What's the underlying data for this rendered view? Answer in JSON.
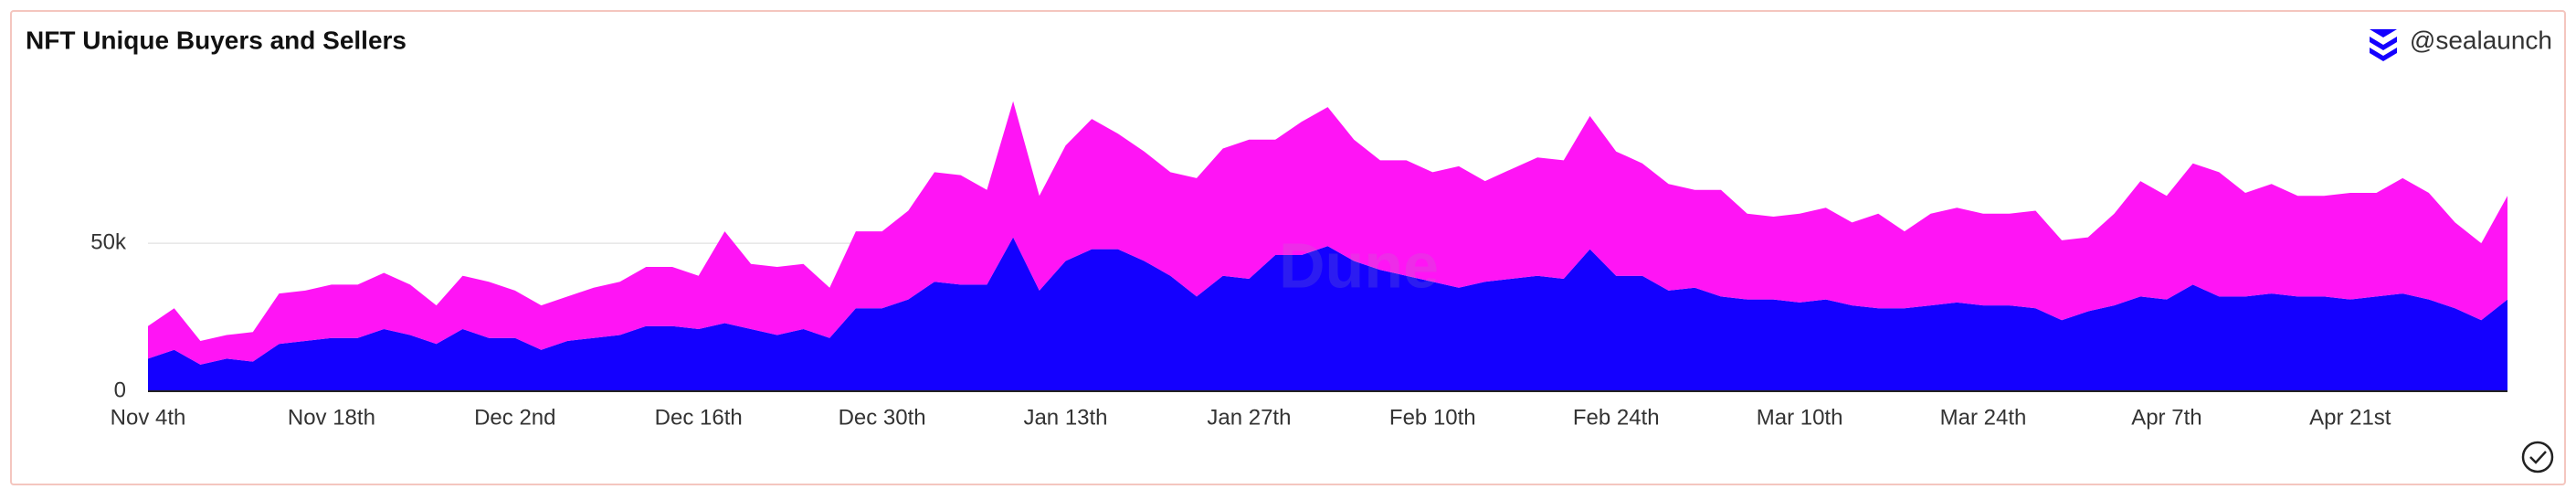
{
  "chart_data": {
    "type": "area",
    "stacked": true,
    "title": "NFT Unique Buyers and Sellers",
    "attribution": "@sealaunch",
    "watermark": "Dune",
    "categories": [
      "Nov 4th",
      null,
      null,
      null,
      null,
      null,
      null,
      "Nov 18th",
      null,
      null,
      null,
      null,
      null,
      null,
      "Dec 2nd",
      null,
      null,
      null,
      null,
      null,
      null,
      "Dec 16th",
      null,
      null,
      null,
      null,
      null,
      null,
      "Dec 30th",
      null,
      null,
      null,
      null,
      null,
      null,
      "Jan 13th",
      null,
      null,
      null,
      null,
      null,
      null,
      "Jan 27th",
      null,
      null,
      null,
      null,
      null,
      null,
      "Feb 10th",
      null,
      null,
      null,
      null,
      null,
      null,
      "Feb 24th",
      null,
      null,
      null,
      null,
      null,
      null,
      "Mar 10th",
      null,
      null,
      null,
      null,
      null,
      null,
      "Mar 24th",
      null,
      null,
      null,
      null,
      null,
      null,
      "Apr 7th",
      null,
      null,
      null,
      null,
      null,
      null,
      "Apr 21st",
      null,
      null,
      null,
      null,
      null,
      null
    ],
    "series": [
      {
        "color": "#1400ff",
        "values": [
          11000,
          14000,
          9000,
          11000,
          10000,
          16000,
          17000,
          18000,
          18000,
          21000,
          19000,
          16000,
          21000,
          18000,
          18000,
          14000,
          17000,
          18000,
          19000,
          22000,
          22000,
          21000,
          23000,
          21000,
          19000,
          21000,
          18000,
          28000,
          28000,
          31000,
          37000,
          36000,
          36000,
          52000,
          34000,
          44000,
          48000,
          48000,
          44000,
          39000,
          32000,
          39000,
          38000,
          46000,
          46000,
          49000,
          44000,
          41000,
          39000,
          37000,
          35000,
          37000,
          38000,
          39000,
          38000,
          48000,
          39000,
          39000,
          34000,
          35000,
          32000,
          31000,
          31000,
          30000,
          31000,
          29000,
          28000,
          28000,
          29000,
          30000,
          29000,
          29000,
          28000,
          24000,
          27000,
          29000,
          32000,
          31000,
          36000,
          32000,
          32000,
          33000,
          32000,
          32000,
          31000,
          32000,
          33000,
          31000,
          28000,
          24000,
          31000
        ]
      },
      {
        "color": "#ff14f5",
        "values": [
          11000,
          14000,
          8000,
          8000,
          10000,
          17000,
          17000,
          18000,
          18000,
          19000,
          17000,
          13000,
          18000,
          19000,
          16000,
          15000,
          15000,
          17000,
          18000,
          20000,
          20000,
          18000,
          31000,
          22000,
          23000,
          22000,
          17000,
          26000,
          26000,
          30000,
          37000,
          37000,
          32000,
          46000,
          32000,
          39000,
          44000,
          39000,
          37000,
          35000,
          40000,
          43000,
          47000,
          39000,
          45000,
          47000,
          41000,
          37000,
          39000,
          37000,
          41000,
          34000,
          37000,
          40000,
          40000,
          45000,
          42000,
          38000,
          36000,
          33000,
          36000,
          29000,
          28000,
          30000,
          31000,
          28000,
          32000,
          26000,
          31000,
          32000,
          31000,
          31000,
          33000,
          27000,
          25000,
          31000,
          39000,
          35000,
          41000,
          42000,
          35000,
          37000,
          34000,
          34000,
          36000,
          35000,
          39000,
          36000,
          29000,
          26000,
          35000
        ]
      }
    ],
    "ylim": [
      0,
      105000
    ],
    "yticks": [
      0,
      {
        "value": 50000,
        "label": "50k"
      }
    ],
    "grid": true
  }
}
